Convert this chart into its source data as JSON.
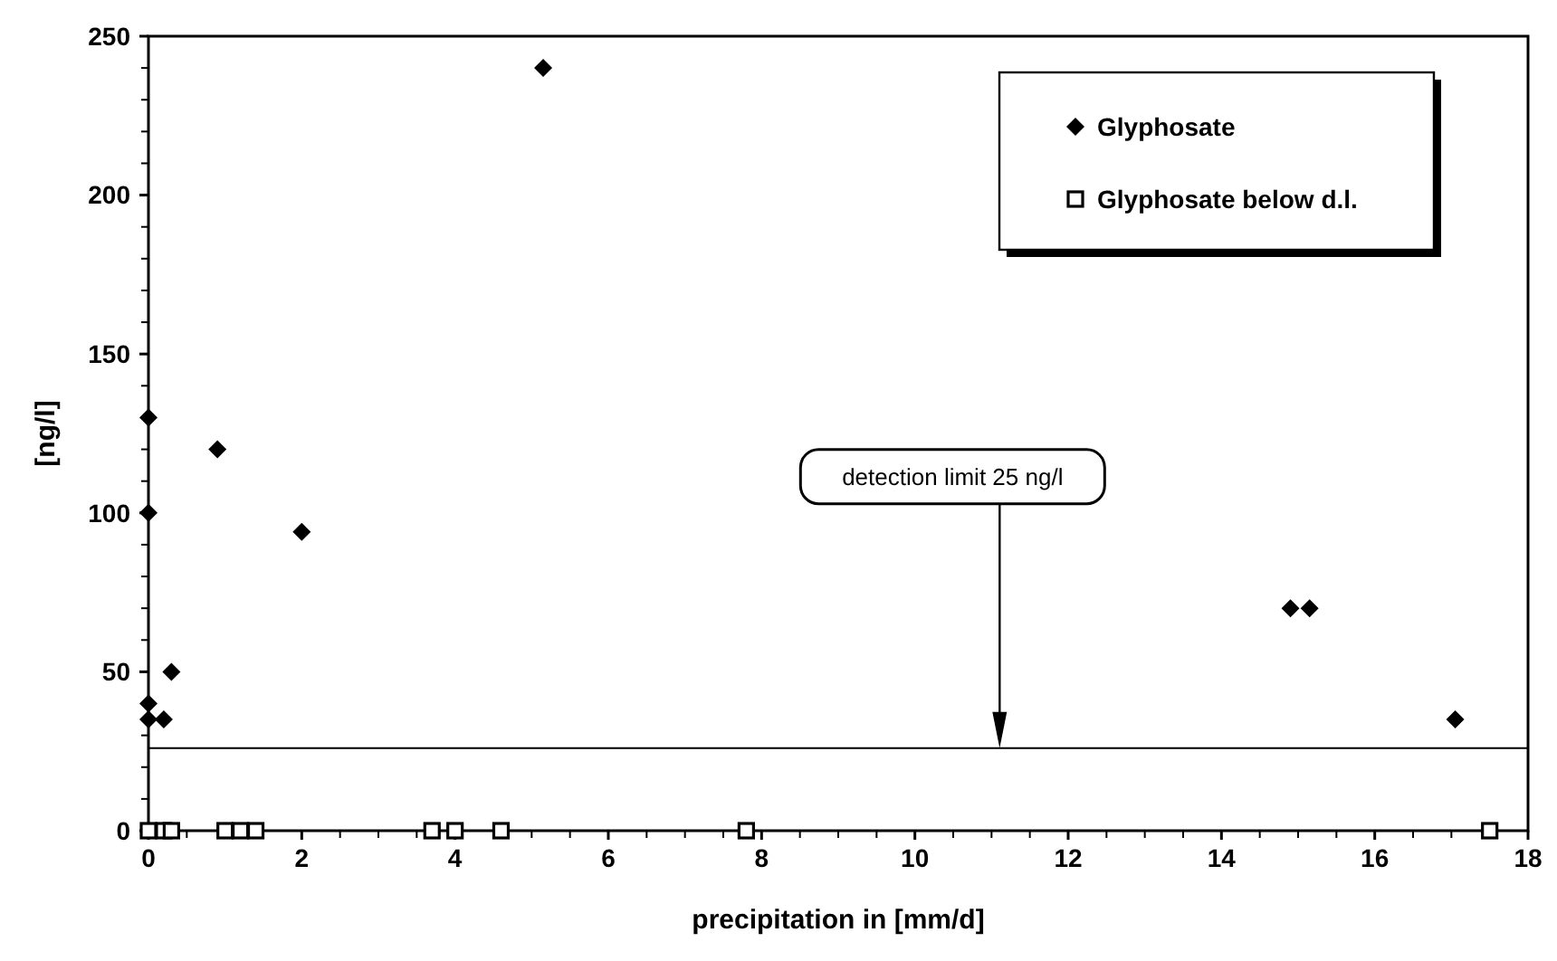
{
  "chart_data": {
    "type": "scatter",
    "xlabel": "precipitation in [mm/d]",
    "ylabel": "[ng/l]",
    "xlim": [
      0,
      18
    ],
    "xticks": [
      0,
      2,
      4,
      6,
      8,
      10,
      12,
      14,
      16,
      18
    ],
    "ylim": [
      0,
      250
    ],
    "yticks": [
      0,
      50,
      100,
      150,
      200,
      250
    ],
    "series": [
      {
        "name": "Glyphosate",
        "color": "#000000",
        "marker": "diamond",
        "x": [
          0,
          0,
          0,
          0,
          0.2,
          0.3,
          0.9,
          2.0,
          5.15,
          14.9,
          15.15,
          17.05
        ],
        "values": [
          130,
          100,
          40,
          35,
          35,
          50,
          120,
          94,
          240,
          70,
          70,
          35
        ]
      },
      {
        "name": "Glyphosate below d.l.",
        "color": "#000000",
        "marker": "square",
        "x": [
          0,
          0.2,
          0.3,
          1.0,
          1.2,
          1.4,
          3.7,
          4.0,
          4.6,
          7.8,
          17.5
        ],
        "values": [
          0,
          0,
          0,
          0,
          0,
          0,
          0,
          0,
          0,
          0,
          0
        ]
      }
    ],
    "ref_lines": [
      {
        "axis": "y",
        "value": 26
      }
    ],
    "annotations": [
      "detection limit 25 ng/l"
    ],
    "legend": "top right",
    "grid": false
  }
}
